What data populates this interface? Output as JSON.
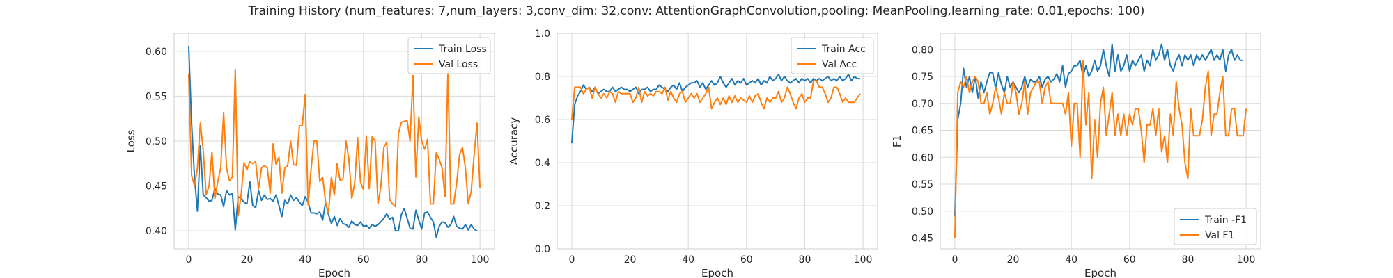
{
  "figure": {
    "title": "Training History (num_features: 7,num_layers: 3,conv_dim: 32,conv: AttentionGraphConvolution,pooling: MeanPooling,learning_rate: 0.01,epochs: 100)"
  },
  "colors": {
    "train": "#1f77b4",
    "val": "#ff7f0e",
    "grid": "#d9d9d9",
    "spine": "#cccccc"
  },
  "chart_data": [
    {
      "type": "line",
      "xlabel": "Epoch",
      "ylabel": "Loss",
      "xlim": [
        -5,
        105
      ],
      "ylim": [
        0.38,
        0.62
      ],
      "xticks": [
        0,
        20,
        40,
        60,
        80,
        100
      ],
      "yticks": [
        0.4,
        0.45,
        0.5,
        0.55,
        0.6
      ],
      "ytick_labels": [
        "0.40",
        "0.45",
        "0.50",
        "0.55",
        "0.60"
      ],
      "grid": true,
      "legend": "top-right",
      "series": [
        {
          "name": "Train Loss",
          "color": "#1f77b4",
          "values": [
            0.606,
            0.52,
            0.46,
            0.422,
            0.495,
            0.44,
            0.437,
            0.433,
            0.434,
            0.447,
            0.441,
            0.44,
            0.427,
            0.445,
            0.44,
            0.442,
            0.401,
            0.438,
            0.436,
            0.432,
            0.43,
            0.455,
            0.428,
            0.426,
            0.445,
            0.434,
            0.44,
            0.435,
            0.436,
            0.433,
            0.44,
            0.428,
            0.416,
            0.434,
            0.43,
            0.44,
            0.434,
            0.437,
            0.432,
            0.428,
            0.438,
            0.432,
            0.42,
            0.42,
            0.419,
            0.421,
            0.412,
            0.432,
            0.418,
            0.408,
            0.416,
            0.406,
            0.414,
            0.408,
            0.407,
            0.404,
            0.411,
            0.407,
            0.406,
            0.41,
            0.405,
            0.406,
            0.403,
            0.407,
            0.405,
            0.407,
            0.41,
            0.414,
            0.419,
            0.413,
            0.415,
            0.4,
            0.4,
            0.418,
            0.425,
            0.414,
            0.403,
            0.402,
            0.423,
            0.412,
            0.402,
            0.42,
            0.421,
            0.415,
            0.41,
            0.393,
            0.405,
            0.41,
            0.409,
            0.404,
            0.407,
            0.416,
            0.405,
            0.403,
            0.402,
            0.407,
            0.401,
            0.407,
            0.402,
            0.4
          ]
        },
        {
          "name": "Val Loss",
          "color": "#ff7f0e",
          "values": [
            0.575,
            0.462,
            0.45,
            0.47,
            0.52,
            0.49,
            0.44,
            0.45,
            0.488,
            0.436,
            0.455,
            0.47,
            0.532,
            0.47,
            0.456,
            0.46,
            0.58,
            0.417,
            0.44,
            0.476,
            0.468,
            0.477,
            0.475,
            0.477,
            0.447,
            0.47,
            0.473,
            0.47,
            0.442,
            0.497,
            0.474,
            0.482,
            0.442,
            0.47,
            0.473,
            0.5,
            0.474,
            0.473,
            0.517,
            0.517,
            0.552,
            0.429,
            0.468,
            0.5,
            0.5,
            0.455,
            0.46,
            0.432,
            0.42,
            0.46,
            0.44,
            0.475,
            0.456,
            0.458,
            0.5,
            0.48,
            0.436,
            0.453,
            0.504,
            0.454,
            0.446,
            0.506,
            0.447,
            0.505,
            0.5,
            0.43,
            0.45,
            0.493,
            0.499,
            0.435,
            0.43,
            0.427,
            0.508,
            0.521,
            0.522,
            0.523,
            0.5,
            0.573,
            0.46,
            0.527,
            0.5,
            0.491,
            0.502,
            0.43,
            0.43,
            0.487,
            0.48,
            0.47,
            0.438,
            0.578,
            0.43,
            0.43,
            0.453,
            0.485,
            0.493,
            0.47,
            0.43,
            0.444,
            0.485,
            0.52,
            0.448
          ]
        }
      ]
    },
    {
      "type": "line",
      "xlabel": "Epoch",
      "ylabel": "Accuracy",
      "xlim": [
        -5,
        105
      ],
      "ylim": [
        0.0,
        1.0
      ],
      "xticks": [
        0,
        20,
        40,
        60,
        80,
        100
      ],
      "yticks": [
        0.0,
        0.2,
        0.4,
        0.6,
        0.8,
        1.0
      ],
      "ytick_labels": [
        "0.0",
        "0.2",
        "0.4",
        "0.6",
        "0.8",
        "1.0"
      ],
      "grid": true,
      "legend": "top-right",
      "series": [
        {
          "name": "Train Acc",
          "color": "#1f77b4",
          "values": [
            0.49,
            0.67,
            0.71,
            0.73,
            0.76,
            0.74,
            0.75,
            0.73,
            0.75,
            0.72,
            0.73,
            0.74,
            0.73,
            0.73,
            0.75,
            0.73,
            0.74,
            0.75,
            0.74,
            0.74,
            0.73,
            0.74,
            0.75,
            0.72,
            0.74,
            0.74,
            0.75,
            0.73,
            0.74,
            0.74,
            0.76,
            0.75,
            0.74,
            0.73,
            0.75,
            0.76,
            0.74,
            0.77,
            0.73,
            0.75,
            0.76,
            0.77,
            0.77,
            0.78,
            0.75,
            0.77,
            0.74,
            0.76,
            0.78,
            0.76,
            0.77,
            0.8,
            0.77,
            0.75,
            0.77,
            0.79,
            0.76,
            0.78,
            0.77,
            0.79,
            0.76,
            0.77,
            0.78,
            0.77,
            0.79,
            0.76,
            0.78,
            0.77,
            0.8,
            0.78,
            0.79,
            0.81,
            0.78,
            0.8,
            0.78,
            0.77,
            0.78,
            0.79,
            0.77,
            0.79,
            0.78,
            0.79,
            0.77,
            0.79,
            0.78,
            0.79,
            0.78,
            0.79,
            0.8,
            0.78,
            0.79,
            0.78,
            0.8,
            0.78,
            0.79,
            0.81,
            0.78,
            0.8,
            0.79,
            0.79
          ]
        },
        {
          "name": "Val Acc",
          "color": "#ff7f0e",
          "values": [
            0.6,
            0.75,
            0.75,
            0.75,
            0.72,
            0.74,
            0.75,
            0.7,
            0.75,
            0.72,
            0.7,
            0.72,
            0.7,
            0.73,
            0.72,
            0.68,
            0.73,
            0.72,
            0.72,
            0.72,
            0.72,
            0.68,
            0.7,
            0.75,
            0.68,
            0.73,
            0.71,
            0.72,
            0.71,
            0.73,
            0.73,
            0.72,
            0.75,
            0.69,
            0.73,
            0.7,
            0.68,
            0.72,
            0.73,
            0.68,
            0.7,
            0.72,
            0.7,
            0.72,
            0.68,
            0.7,
            0.72,
            0.75,
            0.65,
            0.68,
            0.7,
            0.67,
            0.7,
            0.67,
            0.71,
            0.68,
            0.71,
            0.68,
            0.7,
            0.69,
            0.68,
            0.71,
            0.68,
            0.71,
            0.72,
            0.68,
            0.65,
            0.7,
            0.68,
            0.7,
            0.7,
            0.73,
            0.68,
            0.7,
            0.75,
            0.72,
            0.68,
            0.65,
            0.7,
            0.72,
            0.68,
            0.7,
            0.7,
            0.78,
            0.78,
            0.75,
            0.75,
            0.72,
            0.68,
            0.7,
            0.75,
            0.75,
            0.72,
            0.68,
            0.7,
            0.68,
            0.68,
            0.68,
            0.7,
            0.72
          ]
        }
      ]
    },
    {
      "type": "line",
      "xlabel": "Epoch",
      "ylabel": "F1",
      "xlim": [
        -5,
        105
      ],
      "ylim": [
        0.43,
        0.83
      ],
      "xticks": [
        0,
        20,
        40,
        60,
        80,
        100
      ],
      "yticks": [
        0.45,
        0.5,
        0.55,
        0.6,
        0.65,
        0.7,
        0.75,
        0.8
      ],
      "ytick_labels": [
        "0.45",
        "0.50",
        "0.55",
        "0.60",
        "0.65",
        "0.70",
        "0.75",
        "0.80"
      ],
      "grid": true,
      "legend": "bottom-right",
      "series": [
        {
          "name": "Train -F1",
          "color": "#1f77b4",
          "values": [
            0.49,
            0.67,
            0.7,
            0.765,
            0.73,
            0.75,
            0.72,
            0.75,
            0.71,
            0.74,
            0.72,
            0.74,
            0.757,
            0.757,
            0.728,
            0.757,
            0.735,
            0.72,
            0.75,
            0.73,
            0.74,
            0.73,
            0.72,
            0.73,
            0.75,
            0.73,
            0.745,
            0.74,
            0.74,
            0.75,
            0.73,
            0.745,
            0.75,
            0.74,
            0.745,
            0.755,
            0.74,
            0.77,
            0.73,
            0.755,
            0.76,
            0.77,
            0.77,
            0.78,
            0.75,
            0.77,
            0.75,
            0.76,
            0.78,
            0.76,
            0.77,
            0.8,
            0.77,
            0.75,
            0.81,
            0.76,
            0.79,
            0.76,
            0.77,
            0.79,
            0.76,
            0.78,
            0.77,
            0.78,
            0.79,
            0.76,
            0.78,
            0.77,
            0.8,
            0.78,
            0.79,
            0.81,
            0.78,
            0.8,
            0.77,
            0.76,
            0.78,
            0.79,
            0.77,
            0.79,
            0.78,
            0.79,
            0.77,
            0.79,
            0.78,
            0.79,
            0.78,
            0.79,
            0.8,
            0.78,
            0.79,
            0.78,
            0.8,
            0.76,
            0.79,
            0.8,
            0.78,
            0.79,
            0.78,
            0.78
          ]
        },
        {
          "name": "Val F1",
          "color": "#ff7f0e",
          "values": [
            0.45,
            0.72,
            0.74,
            0.73,
            0.75,
            0.72,
            0.74,
            0.75,
            0.74,
            0.7,
            0.7,
            0.72,
            0.68,
            0.7,
            0.73,
            0.71,
            0.68,
            0.72,
            0.7,
            0.7,
            0.74,
            0.72,
            0.68,
            0.7,
            0.74,
            0.68,
            0.72,
            0.73,
            0.74,
            0.74,
            0.7,
            0.73,
            0.74,
            0.7,
            0.7,
            0.7,
            0.7,
            0.7,
            0.68,
            0.72,
            0.62,
            0.7,
            0.7,
            0.6,
            0.78,
            0.66,
            0.72,
            0.56,
            0.67,
            0.6,
            0.7,
            0.73,
            0.64,
            0.68,
            0.72,
            0.64,
            0.68,
            0.64,
            0.68,
            0.64,
            0.68,
            0.66,
            0.69,
            0.69,
            0.65,
            0.59,
            0.66,
            0.66,
            0.69,
            0.64,
            0.69,
            0.61,
            0.64,
            0.59,
            0.68,
            0.64,
            0.74,
            0.69,
            0.66,
            0.59,
            0.56,
            0.69,
            0.64,
            0.64,
            0.64,
            0.67,
            0.73,
            0.76,
            0.64,
            0.68,
            0.68,
            0.72,
            0.75,
            0.64,
            0.64,
            0.69,
            0.69,
            0.64,
            0.64,
            0.64,
            0.69
          ]
        }
      ]
    }
  ]
}
